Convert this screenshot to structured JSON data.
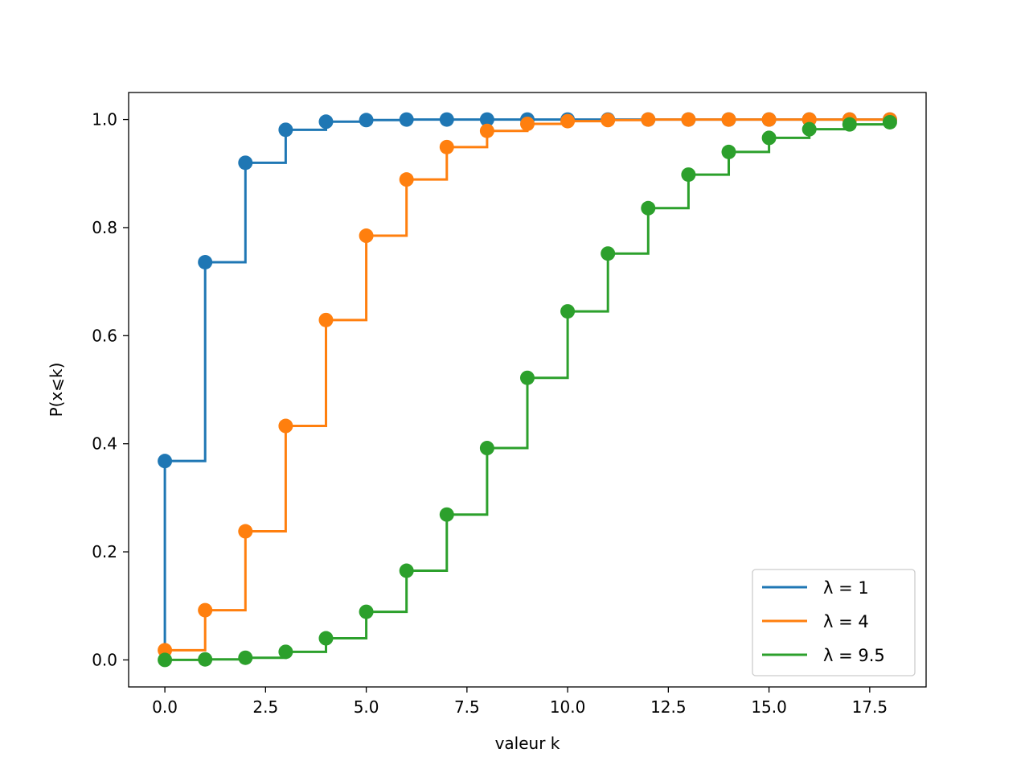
{
  "chart_data": {
    "type": "line",
    "subtype": "step-post with markers",
    "xlabel": "valeur k",
    "ylabel": "P(x⩽k)",
    "xlim": [
      -0.9,
      18.9
    ],
    "ylim": [
      -0.05,
      1.05
    ],
    "x_ticks": [
      0.0,
      2.5,
      5.0,
      7.5,
      10.0,
      12.5,
      15.0,
      17.5
    ],
    "x_tick_labels": [
      "0.0",
      "2.5",
      "5.0",
      "7.5",
      "10.0",
      "12.5",
      "15.0",
      "17.5"
    ],
    "y_ticks": [
      0.0,
      0.2,
      0.4,
      0.6,
      0.8,
      1.0
    ],
    "y_tick_labels": [
      "0.0",
      "0.2",
      "0.4",
      "0.6",
      "0.8",
      "1.0"
    ],
    "grid": false,
    "legend_position": "bottom-right",
    "x": [
      0,
      1,
      2,
      3,
      4,
      5,
      6,
      7,
      8,
      9,
      10,
      11,
      12,
      13,
      14,
      15,
      16,
      17,
      18
    ],
    "series": [
      {
        "name": "λ = 1",
        "color": "#1f77b4",
        "values": [
          0.368,
          0.736,
          0.92,
          0.981,
          0.996,
          0.999,
          1.0,
          1.0,
          1.0,
          1.0,
          1.0,
          1.0,
          1.0,
          1.0,
          1.0,
          1.0,
          1.0,
          1.0,
          1.0
        ]
      },
      {
        "name": "λ = 4",
        "color": "#ff7f0e",
        "values": [
          0.018,
          0.092,
          0.238,
          0.433,
          0.629,
          0.785,
          0.889,
          0.949,
          0.979,
          0.992,
          0.997,
          0.999,
          1.0,
          1.0,
          1.0,
          1.0,
          1.0,
          1.0,
          1.0
        ]
      },
      {
        "name": "λ = 9.5",
        "color": "#2ca02c",
        "values": [
          0.0,
          0.001,
          0.004,
          0.015,
          0.04,
          0.089,
          0.165,
          0.269,
          0.392,
          0.522,
          0.645,
          0.752,
          0.836,
          0.898,
          0.94,
          0.966,
          0.982,
          0.991,
          0.995
        ]
      }
    ]
  }
}
